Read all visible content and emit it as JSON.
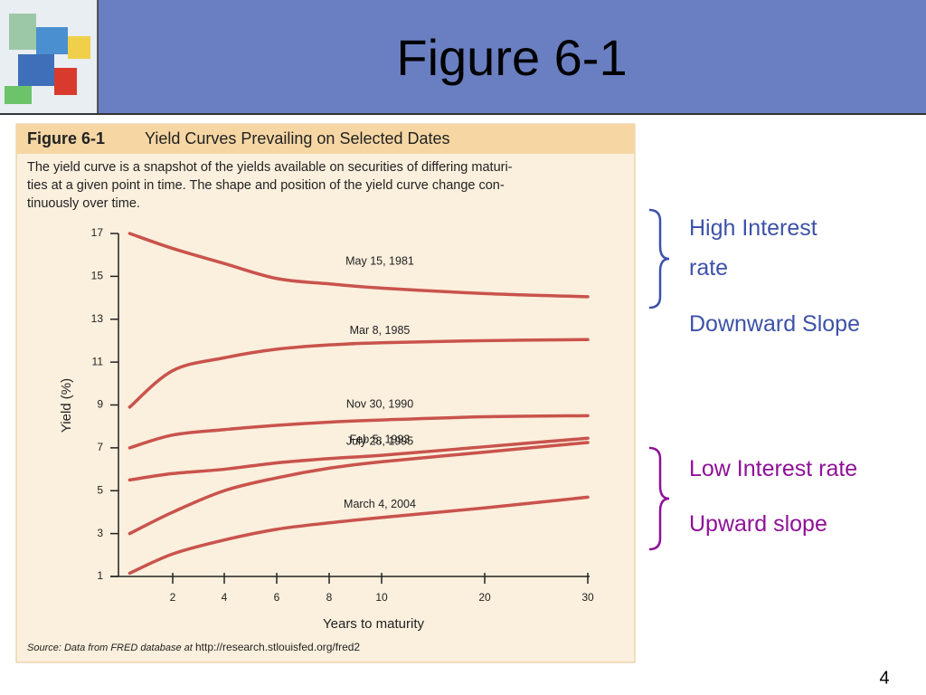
{
  "slide": {
    "title": "Figure 6-1",
    "page_number": "4",
    "notes": [
      {
        "text": "High Interest rate",
        "color": "#3d52a8"
      },
      {
        "text": "Downward Slope",
        "color": "#3d52a8"
      },
      {
        "text": "Low Interest rate",
        "color": "#8e1197"
      },
      {
        "text": "Upward slope",
        "color": "#8e1197"
      }
    ]
  },
  "figure": {
    "label": "Figure 6-1",
    "caption": "Yield Curves Prevailing on Selected Dates",
    "description": [
      "The yield curve is a snapshot of the yields available on securities of differing maturi-",
      "ties at a given point in time. The shape and position of the yield curve change con-",
      "tinuously over time."
    ],
    "source_label": "Source: Data from FRED database at",
    "source_url": "http://research.stlouisfed.org/fred2"
  },
  "chart_data": {
    "type": "line",
    "x_label": "Years to maturity",
    "y_label": "Yield (%)",
    "x": [
      0.33,
      2,
      4,
      6,
      8,
      10,
      20,
      30
    ],
    "xticks": [
      2,
      4,
      6,
      8,
      10,
      20,
      30
    ],
    "ylim": [
      1,
      17
    ],
    "yticks": [
      1,
      3,
      5,
      7,
      9,
      11,
      13,
      15,
      17
    ],
    "series": [
      {
        "name": "May 15, 1981",
        "color": "#c9534c",
        "values": [
          17.0,
          16.3,
          15.6,
          14.9,
          14.65,
          14.45,
          14.2,
          14.05
        ]
      },
      {
        "name": "Mar 8, 1985",
        "color": "#c9534c",
        "values": [
          8.9,
          10.6,
          11.2,
          11.6,
          11.8,
          11.9,
          12.0,
          12.05
        ]
      },
      {
        "name": "Nov 30, 1990",
        "color": "#c9534c",
        "values": [
          7.0,
          7.6,
          7.85,
          8.05,
          8.2,
          8.3,
          8.45,
          8.5
        ]
      },
      {
        "name": "July 28, 1995",
        "color": "#c9534c",
        "values": [
          5.5,
          5.8,
          6.0,
          6.3,
          6.5,
          6.65,
          7.05,
          7.45
        ]
      },
      {
        "name": "Feb 5, 1993",
        "color": "#c9534c",
        "values": [
          3.0,
          4.0,
          5.0,
          5.6,
          6.05,
          6.35,
          6.8,
          7.25
        ]
      },
      {
        "name": "March 4, 2004",
        "color": "#c9534c",
        "values": [
          1.15,
          2.05,
          2.7,
          3.2,
          3.5,
          3.75,
          4.2,
          4.7
        ]
      }
    ]
  }
}
